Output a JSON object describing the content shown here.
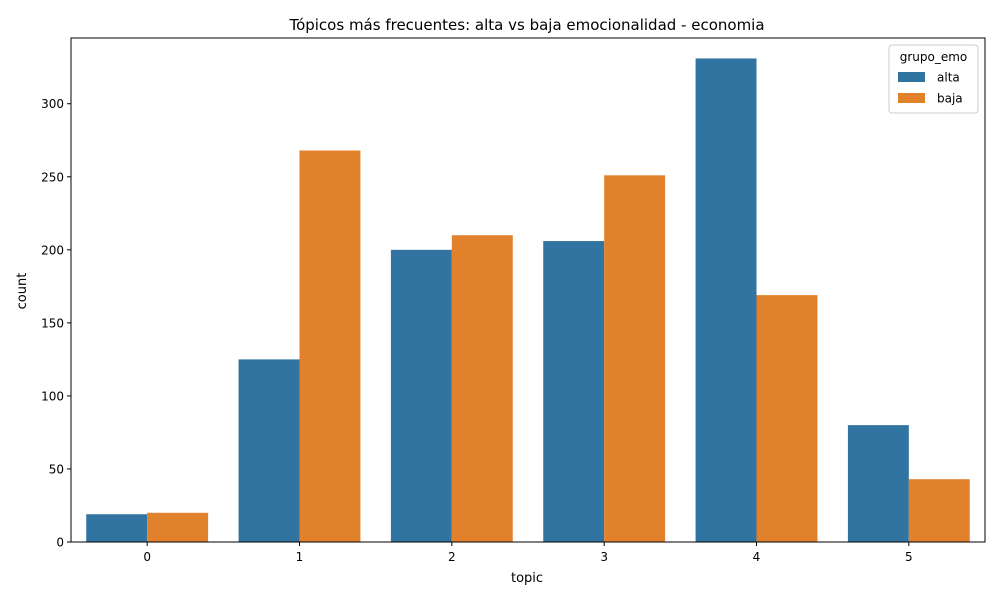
{
  "chart_data": {
    "type": "bar",
    "title": "Tópicos más frecuentes: alta vs baja emocionalidad - economia",
    "xlabel": "topic",
    "ylabel": "count",
    "categories": [
      "0",
      "1",
      "2",
      "3",
      "4",
      "5"
    ],
    "ylim": [
      0,
      345
    ],
    "yticks": [
      0,
      50,
      100,
      150,
      200,
      250,
      300
    ],
    "grid": false,
    "legend": {
      "title": "grupo_emo",
      "position": "top-right"
    },
    "series": [
      {
        "name": "alta",
        "color": "#3274a1",
        "values": [
          19,
          125,
          200,
          206,
          331,
          80
        ]
      },
      {
        "name": "baja",
        "color": "#e1812c",
        "values": [
          20,
          268,
          210,
          251,
          169,
          43
        ]
      }
    ]
  }
}
